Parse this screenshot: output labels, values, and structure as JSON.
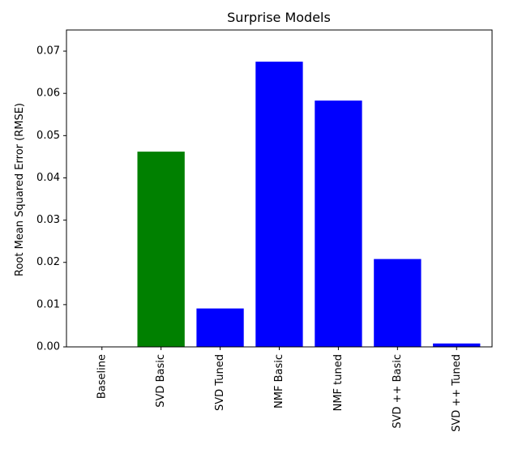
{
  "chart_data": {
    "type": "bar",
    "title": "Surprise Models",
    "xlabel": "",
    "ylabel": "Root Mean Squared Error (RMSE)",
    "ylim": [
      0,
      0.075
    ],
    "yticks": [
      "0.00",
      "0.01",
      "0.02",
      "0.03",
      "0.04",
      "0.05",
      "0.06",
      "0.07"
    ],
    "categories": [
      "Baseline",
      "SVD Basic",
      "SVD Tuned",
      "NMF Basic",
      "NMF tuned",
      "SVD ++ Basic",
      "SVD ++ Tuned"
    ],
    "values": [
      0.0,
      0.0462,
      0.0091,
      0.0675,
      0.0583,
      0.0208,
      0.0008
    ],
    "colors": [
      "#0000ff",
      "#008000",
      "#0000ff",
      "#0000ff",
      "#0000ff",
      "#0000ff",
      "#0000ff"
    ],
    "grid": false,
    "legend": "none"
  }
}
